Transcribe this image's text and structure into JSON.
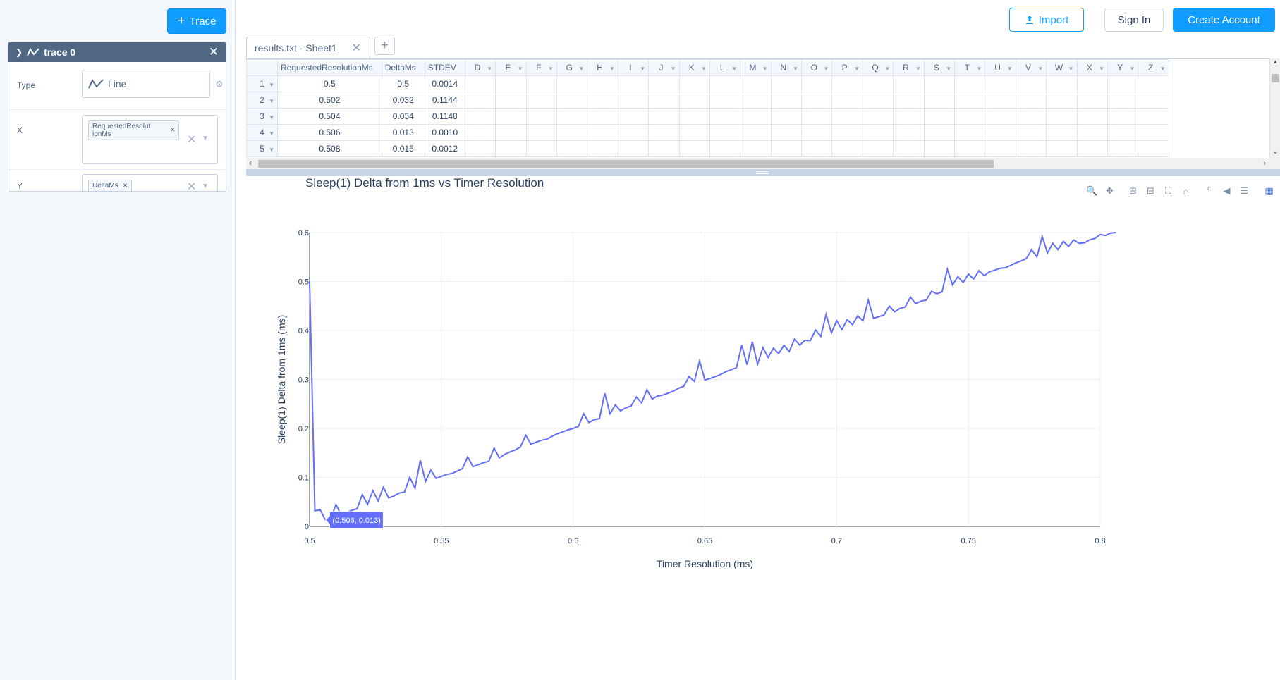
{
  "left_panel": {
    "trace_button_label": "Trace",
    "trace": {
      "name": "trace 0",
      "type_label": "Type",
      "type_value": "Line",
      "x_label": "X",
      "x_value": "RequestedResolut ionMs",
      "y_label": "Y",
      "y_value": "DeltaMs"
    }
  },
  "top_bar": {
    "import_label": "Import",
    "signin_label": "Sign In",
    "create_account_label": "Create Account"
  },
  "sheet": {
    "tab_label": "results.txt - Sheet1",
    "add_tab_label": "+",
    "columns": [
      "RequestedResolutionMs",
      "DeltaMs",
      "STDEV",
      "D",
      "E",
      "F",
      "G",
      "H",
      "I",
      "J",
      "K",
      "L",
      "M",
      "N",
      "O",
      "P",
      "Q",
      "R",
      "S",
      "T",
      "U",
      "V",
      "W",
      "X",
      "Y",
      "Z"
    ],
    "rows": [
      {
        "n": "1",
        "cells": [
          "0.5",
          "0.5",
          "0.0014"
        ]
      },
      {
        "n": "2",
        "cells": [
          "0.502",
          "0.032",
          "0.1144"
        ]
      },
      {
        "n": "3",
        "cells": [
          "0.504",
          "0.034",
          "0.1148"
        ]
      },
      {
        "n": "4",
        "cells": [
          "0.506",
          "0.013",
          "0.0010"
        ]
      },
      {
        "n": "5",
        "cells": [
          "0.508",
          "0.015",
          "0.0012"
        ]
      }
    ]
  },
  "modebar": {
    "icons": [
      "zoom-icon",
      "pan-icon",
      "zoom-in-icon",
      "zoom-out-icon",
      "autoscale-icon",
      "reset-axes-icon",
      "spike-lines-icon",
      "hover-closest-icon",
      "hover-compare-icon",
      "plotly-logo-icon"
    ]
  },
  "colors": {
    "accent": "#119dff",
    "line": "#636efa",
    "panel_header": "#506784"
  },
  "hover_label": "(0.506, 0.013)",
  "chart_data": {
    "type": "line",
    "title": "Sleep(1) Delta from 1ms vs Timer Resolution",
    "xlabel": "Timer Resolution (ms)",
    "ylabel": "Sleep(1) Delta from 1ms (ms)",
    "xlim": [
      0.5,
      0.8
    ],
    "ylim": [
      0,
      0.6
    ],
    "xticks": [
      "0.5",
      "0.55",
      "0.6",
      "0.65",
      "0.7",
      "0.75",
      "0.8"
    ],
    "yticks": [
      "0",
      "0.1",
      "0.2",
      "0.3",
      "0.4",
      "0.5",
      "0.6"
    ],
    "grid": true,
    "series": [
      {
        "x_start": 0.5,
        "x_step": 0.002,
        "values": [
          0.5,
          0.032,
          0.034,
          0.013,
          0.015,
          0.045,
          0.022,
          0.028,
          0.033,
          0.036,
          0.065,
          0.045,
          0.073,
          0.052,
          0.08,
          0.058,
          0.062,
          0.068,
          0.07,
          0.1,
          0.078,
          0.135,
          0.092,
          0.115,
          0.098,
          0.102,
          0.106,
          0.108,
          0.113,
          0.118,
          0.142,
          0.122,
          0.126,
          0.13,
          0.133,
          0.16,
          0.14,
          0.147,
          0.152,
          0.156,
          0.162,
          0.186,
          0.168,
          0.172,
          0.176,
          0.178,
          0.184,
          0.189,
          0.193,
          0.197,
          0.2,
          0.204,
          0.23,
          0.212,
          0.218,
          0.22,
          0.272,
          0.23,
          0.248,
          0.236,
          0.242,
          0.246,
          0.264,
          0.252,
          0.279,
          0.26,
          0.266,
          0.268,
          0.272,
          0.276,
          0.282,
          0.286,
          0.306,
          0.296,
          0.338,
          0.299,
          0.302,
          0.306,
          0.31,
          0.316,
          0.32,
          0.324,
          0.37,
          0.33,
          0.377,
          0.331,
          0.365,
          0.345,
          0.364,
          0.353,
          0.37,
          0.357,
          0.382,
          0.37,
          0.38,
          0.379,
          0.401,
          0.388,
          0.433,
          0.395,
          0.42,
          0.402,
          0.422,
          0.412,
          0.43,
          0.42,
          0.462,
          0.425,
          0.428,
          0.432,
          0.45,
          0.438,
          0.445,
          0.448,
          0.468,
          0.455,
          0.46,
          0.462,
          0.48,
          0.475,
          0.479,
          0.525,
          0.493,
          0.51,
          0.498,
          0.515,
          0.505,
          0.522,
          0.512,
          0.52,
          0.523,
          0.527,
          0.528,
          0.533,
          0.538,
          0.542,
          0.547,
          0.565,
          0.55,
          0.592,
          0.558,
          0.578,
          0.565,
          0.582,
          0.572,
          0.585,
          0.578,
          0.579,
          0.585,
          0.588,
          0.596,
          0.594,
          0.599,
          0.6
        ]
      }
    ]
  }
}
